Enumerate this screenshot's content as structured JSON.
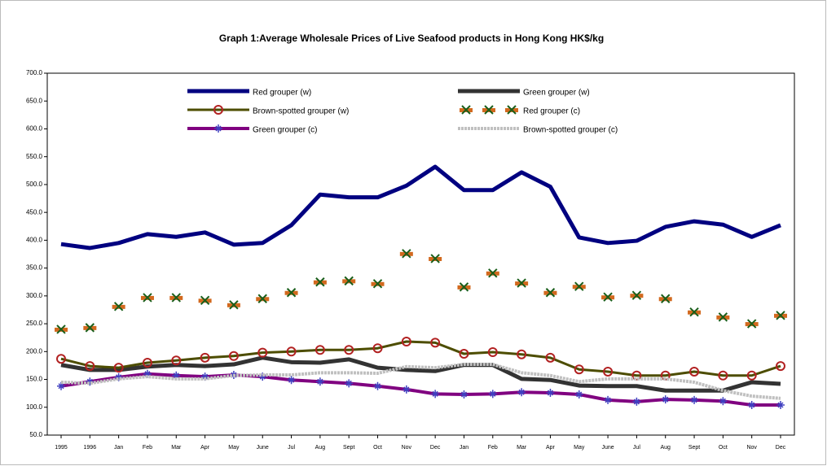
{
  "chart_data": {
    "type": "line",
    "title": "Graph 1:Average Wholesale Prices of Live Seafood products in Hong Kong HK$/kg",
    "categories": [
      "1995",
      "1996",
      "Jan",
      "Feb",
      "Mar",
      "Apr",
      "May",
      "June",
      "Jul",
      "Aug",
      "Sept",
      "Oct",
      "Nov",
      "Dec",
      "Jan",
      "Feb",
      "Mar",
      "Apr",
      "May",
      "June",
      "Jul",
      "Aug",
      "Sept",
      "Oct",
      "Nov",
      "Dec"
    ],
    "ylim": [
      50,
      700
    ],
    "yticks": [
      {
        "value": 50,
        "label": "50.0"
      },
      {
        "value": 100,
        "label": "100.0"
      },
      {
        "value": 150,
        "label": "150.0"
      },
      {
        "value": 200,
        "label": "200.0"
      },
      {
        "value": 250,
        "label": "250.0"
      },
      {
        "value": 300,
        "label": "300.0"
      },
      {
        "value": 350,
        "label": "350.0"
      },
      {
        "value": 400,
        "label": "400.0"
      },
      {
        "value": 450,
        "label": "450.0"
      },
      {
        "value": 500,
        "label": "500.0"
      },
      {
        "value": 550,
        "label": "550.0"
      },
      {
        "value": 600,
        "label": "600.0"
      },
      {
        "value": 650,
        "label": "650.0"
      },
      {
        "value": 700,
        "label": "700.0"
      }
    ],
    "grid": false,
    "series": [
      {
        "name": "Red grouper (w)",
        "color": "#000080",
        "width": 5,
        "marker": "none",
        "values": [
          393,
          386,
          395,
          411,
          406,
          414,
          392,
          395,
          427,
          482,
          477,
          477,
          498,
          532,
          490,
          490,
          522,
          496,
          405,
          395,
          399,
          424,
          434,
          428,
          406,
          427
        ]
      },
      {
        "name": "Green grouper (w)",
        "color": "#333333",
        "width": 5,
        "marker": "none",
        "values": [
          176,
          167,
          167,
          173,
          176,
          174,
          177,
          189,
          181,
          180,
          186,
          171,
          167,
          165,
          176,
          176,
          151,
          149,
          139,
          138,
          138,
          130,
          130,
          130,
          145,
          142
        ]
      },
      {
        "name": "Brown-spotted grouper (w)",
        "color": "#4d4d00",
        "width": 3,
        "marker": "circle",
        "marker_color": "#b22222",
        "values": [
          187,
          174,
          171,
          180,
          184,
          189,
          192,
          198,
          200,
          203,
          203,
          206,
          218,
          216,
          196,
          199,
          195,
          189,
          168,
          164,
          157,
          157,
          164,
          157,
          157,
          174
        ]
      },
      {
        "name": "Red grouper (c)",
        "color": "#d2691e",
        "width": 0,
        "marker": "x",
        "marker_color": "#1a5e1a",
        "values": [
          240,
          243,
          281,
          297,
          297,
          292,
          284,
          295,
          306,
          325,
          327,
          322,
          376,
          367,
          316,
          341,
          323,
          306,
          317,
          298,
          301,
          295,
          271,
          262,
          250,
          265
        ]
      },
      {
        "name": "Green grouper (c)",
        "color": "#800080",
        "width": 4,
        "marker": "star",
        "marker_color": "#4040c0",
        "values": [
          138,
          146,
          154,
          160,
          157,
          155,
          158,
          155,
          149,
          146,
          143,
          138,
          132,
          124,
          123,
          124,
          127,
          126,
          123,
          113,
          110,
          114,
          113,
          111,
          104,
          104
        ]
      },
      {
        "name": "Brown-spotted grouper (c)",
        "color": "#c0c0c0",
        "width": 4,
        "marker": "none",
        "dash": true,
        "values": [
          145,
          143,
          151,
          155,
          151,
          151,
          157,
          158,
          158,
          162,
          162,
          161,
          173,
          171,
          177,
          177,
          162,
          157,
          146,
          151,
          151,
          151,
          145,
          130,
          120,
          116
        ]
      }
    ]
  }
}
